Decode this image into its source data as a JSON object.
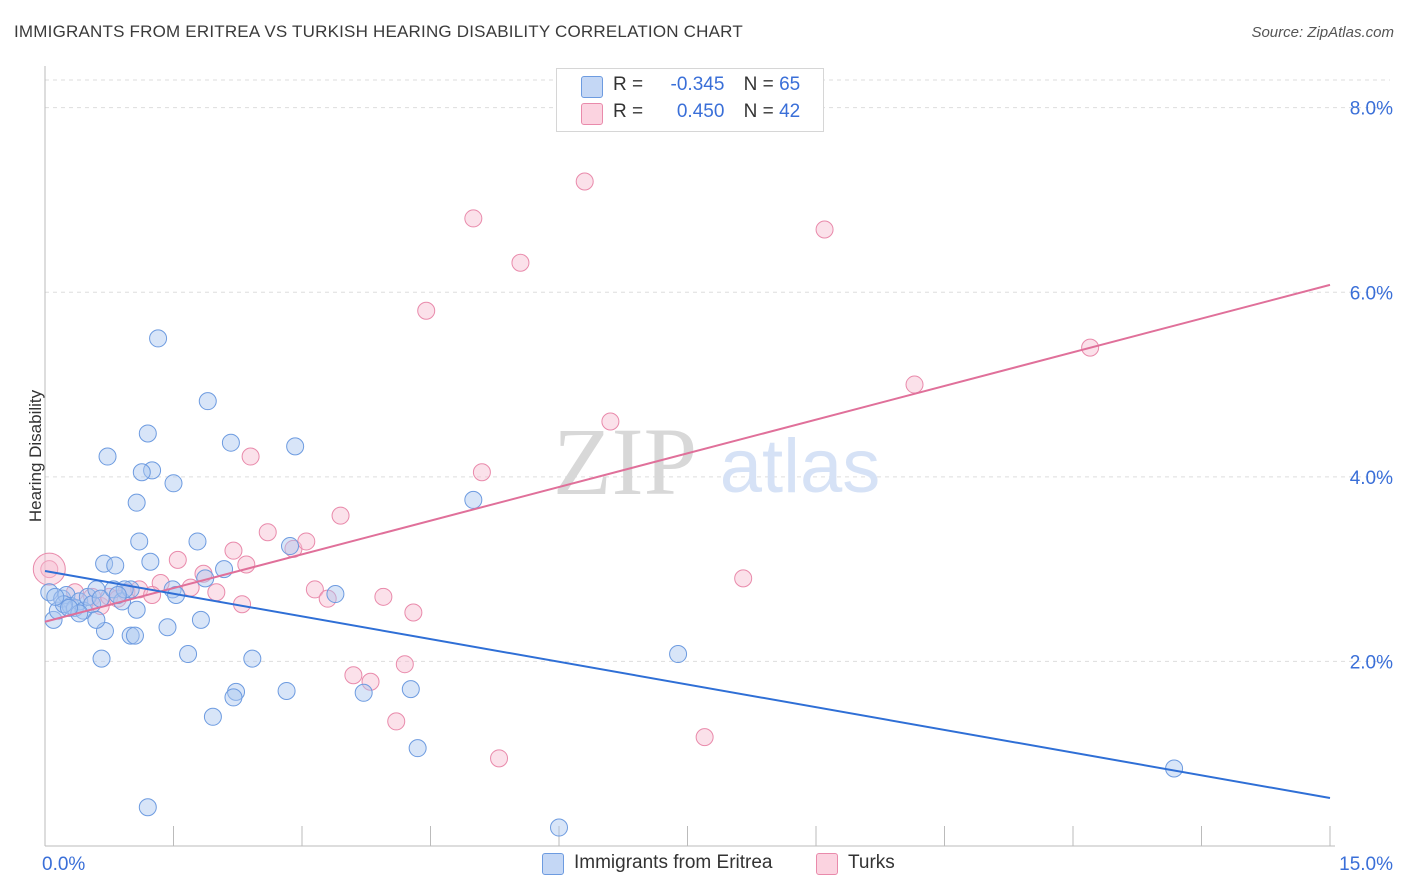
{
  "title": "IMMIGRANTS FROM ERITREA VS TURKISH HEARING DISABILITY CORRELATION CHART",
  "source": "Source: ZipAtlas.com",
  "watermark": {
    "zip": "ZIP",
    "atlas": "atlas"
  },
  "legend_top": {
    "rows": [
      {
        "r_label": "R =",
        "r_value": "-0.345",
        "n_label": "N =",
        "n_value": "65"
      },
      {
        "r_label": "R =",
        "r_value": "0.450",
        "n_label": "N =",
        "n_value": "42"
      }
    ]
  },
  "legend_bottom": {
    "series1": "Immigrants from Eritrea",
    "series2": "Turks"
  },
  "colors": {
    "blue_fill": "#a9c5ef",
    "blue_stroke": "#6d9be0",
    "blue_line": "#2f6fd6",
    "pink_fill": "#f6bcd0",
    "pink_stroke": "#e98aab",
    "pink_line": "#e0709a",
    "tick_label": "#3a6fd8",
    "grid": "#dddddd"
  },
  "chart_data": {
    "type": "scatter",
    "title": "IMMIGRANTS FROM ERITREA VS TURKISH HEARING DISABILITY CORRELATION CHART",
    "xlabel": "",
    "ylabel": "Hearing Disability",
    "xlim": [
      0,
      15
    ],
    "ylim": [
      0,
      8.3
    ],
    "x_tick_labels": [
      "0.0%",
      "15.0%"
    ],
    "y_ticks": [
      2,
      4,
      6,
      8
    ],
    "y_tick_labels": [
      "2.0%",
      "4.0%",
      "6.0%",
      "8.0%"
    ],
    "series": [
      {
        "name": "Immigrants from Eritrea",
        "r": -0.345,
        "n": 65,
        "trend": {
          "x": [
            0,
            15
          ],
          "y": [
            2.98,
            0.52
          ]
        },
        "points": [
          [
            0.05,
            2.75
          ],
          [
            0.1,
            2.45
          ],
          [
            0.15,
            2.55
          ],
          [
            0.2,
            2.68
          ],
          [
            0.25,
            2.72
          ],
          [
            0.3,
            2.6
          ],
          [
            0.35,
            2.58
          ],
          [
            0.4,
            2.65
          ],
          [
            0.45,
            2.55
          ],
          [
            0.5,
            2.7
          ],
          [
            0.55,
            2.62
          ],
          [
            0.6,
            2.78
          ],
          [
            0.65,
            2.68
          ],
          [
            0.7,
            2.33
          ],
          [
            0.8,
            2.78
          ],
          [
            0.9,
            2.65
          ],
          [
            1.0,
            2.78
          ],
          [
            0.22,
            2.62
          ],
          [
            0.12,
            2.7
          ],
          [
            0.6,
            2.45
          ],
          [
            1.32,
            5.5
          ],
          [
            1.9,
            4.82
          ],
          [
            1.2,
            4.47
          ],
          [
            0.73,
            4.22
          ],
          [
            1.25,
            4.07
          ],
          [
            1.07,
            3.72
          ],
          [
            2.17,
            4.37
          ],
          [
            2.92,
            4.33
          ],
          [
            1.5,
            3.93
          ],
          [
            1.13,
            4.05
          ],
          [
            1.1,
            3.3
          ],
          [
            1.78,
            3.3
          ],
          [
            0.69,
            3.06
          ],
          [
            0.82,
            3.04
          ],
          [
            1.23,
            3.08
          ],
          [
            2.09,
            3.0
          ],
          [
            1.87,
            2.9
          ],
          [
            2.86,
            3.25
          ],
          [
            1.49,
            2.78
          ],
          [
            0.93,
            2.78
          ],
          [
            1.53,
            2.72
          ],
          [
            3.39,
            2.73
          ],
          [
            1.07,
            2.56
          ],
          [
            1.82,
            2.45
          ],
          [
            1.43,
            2.37
          ],
          [
            1.0,
            2.28
          ],
          [
            1.05,
            2.28
          ],
          [
            1.67,
            2.08
          ],
          [
            2.42,
            2.03
          ],
          [
            0.66,
            2.03
          ],
          [
            2.82,
            1.68
          ],
          [
            3.72,
            1.66
          ],
          [
            4.27,
            1.7
          ],
          [
            2.23,
            1.67
          ],
          [
            2.2,
            1.61
          ],
          [
            1.96,
            1.4
          ],
          [
            4.35,
            1.06
          ],
          [
            7.39,
            2.08
          ],
          [
            5.0,
            3.75
          ],
          [
            13.18,
            0.84
          ],
          [
            1.2,
            0.42
          ],
          [
            6.0,
            0.2
          ],
          [
            0.4,
            2.52
          ],
          [
            0.85,
            2.72
          ],
          [
            0.28,
            2.58
          ]
        ]
      },
      {
        "name": "Turks",
        "r": 0.45,
        "n": 42,
        "trend": {
          "x": [
            0,
            15
          ],
          "y": [
            2.43,
            6.08
          ]
        },
        "points": [
          [
            0.05,
            3.0
          ],
          [
            0.55,
            2.7
          ],
          [
            0.65,
            2.6
          ],
          [
            0.75,
            2.7
          ],
          [
            0.95,
            2.75
          ],
          [
            1.1,
            2.78
          ],
          [
            1.35,
            2.85
          ],
          [
            1.55,
            3.1
          ],
          [
            1.7,
            2.8
          ],
          [
            1.85,
            2.95
          ],
          [
            2.0,
            2.75
          ],
          [
            2.2,
            3.2
          ],
          [
            2.3,
            2.62
          ],
          [
            2.35,
            3.05
          ],
          [
            2.4,
            4.22
          ],
          [
            2.6,
            3.4
          ],
          [
            2.9,
            3.22
          ],
          [
            3.05,
            3.3
          ],
          [
            3.15,
            2.78
          ],
          [
            3.3,
            2.68
          ],
          [
            3.45,
            3.58
          ],
          [
            3.6,
            1.85
          ],
          [
            3.8,
            1.78
          ],
          [
            3.95,
            2.7
          ],
          [
            4.1,
            1.35
          ],
          [
            4.2,
            1.97
          ],
          [
            4.3,
            2.53
          ],
          [
            4.45,
            5.8
          ],
          [
            5.0,
            6.8
          ],
          [
            5.1,
            4.05
          ],
          [
            5.3,
            0.95
          ],
          [
            5.55,
            6.32
          ],
          [
            6.3,
            7.2
          ],
          [
            6.6,
            4.6
          ],
          [
            7.7,
            1.18
          ],
          [
            8.15,
            2.9
          ],
          [
            9.1,
            6.68
          ],
          [
            10.15,
            5.0
          ],
          [
            12.2,
            5.4
          ],
          [
            0.35,
            2.75
          ],
          [
            0.85,
            2.68
          ],
          [
            1.25,
            2.72
          ]
        ]
      }
    ]
  }
}
